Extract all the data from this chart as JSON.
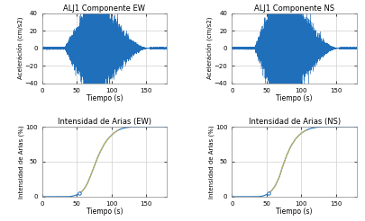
{
  "title_ew": "ALJ1 Componente EW",
  "title_ns": "ALJ1 Componente NS",
  "title_arias_ew": "Intensidad de Arias (EW)",
  "title_arias_ns": "Intensidad de Arias (NS)",
  "xlabel": "Tiempo (s)",
  "ylabel_accel": "Aceleráción (cm/s2)",
  "ylabel_arias": "Intensidad de Arias (%)",
  "xlim": [
    0,
    180
  ],
  "ylim_accel": [
    -40,
    40
  ],
  "ylim_arias": [
    0,
    100
  ],
  "xticks": [
    0,
    50,
    100,
    150
  ],
  "yticks_accel": [
    -40,
    -20,
    0,
    20,
    40
  ],
  "yticks_arias": [
    0,
    50,
    100
  ],
  "signal_color": "#1f6fba",
  "arias_color_main": "#1f6fba",
  "arias_color_overlay": "#c8b45a",
  "background_color": "#ffffff",
  "grid_color": "#d0d0d0",
  "fig_width": 4.06,
  "fig_height": 2.46,
  "dpi": 100,
  "seed": 12345,
  "seismic_start": 33,
  "seismic_peak_ew": 70,
  "seismic_peak_ns": 68,
  "seismic_end": 155,
  "arias_5pct_time_ew": 47,
  "arias_95pct_time_ew": 100,
  "arias_5pct_time_ns": 47,
  "arias_95pct_time_ns": 98
}
